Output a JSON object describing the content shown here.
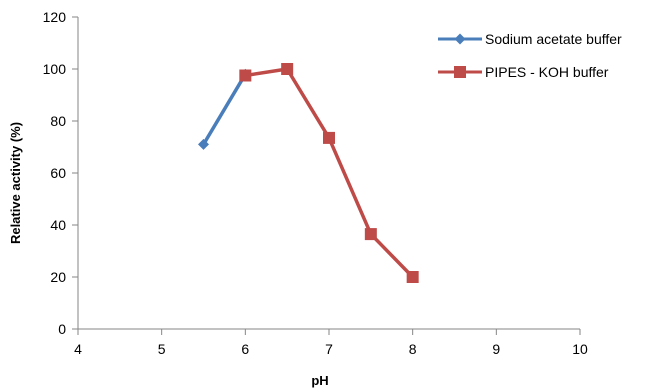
{
  "chart_data": {
    "type": "line",
    "title": "",
    "xlabel": "pH",
    "ylabel": "Relative activity (%)",
    "xlim": [
      4,
      10
    ],
    "ylim": [
      0,
      120
    ],
    "x_ticks": [
      4,
      5,
      6,
      7,
      8,
      9,
      10
    ],
    "y_ticks": [
      0,
      20,
      40,
      60,
      80,
      100,
      120
    ],
    "grid": false,
    "legend_position": "top-right",
    "series": [
      {
        "name": "Sodium acetate buffer",
        "color": "#4a7ebb",
        "marker": "diamond",
        "points": [
          {
            "x": 5.5,
            "y": 71
          },
          {
            "x": 6.0,
            "y": 98
          }
        ]
      },
      {
        "name": "PIPES - KOH buffer",
        "color": "#be4b48",
        "marker": "square",
        "points": [
          {
            "x": 6.0,
            "y": 97.5
          },
          {
            "x": 6.5,
            "y": 100
          },
          {
            "x": 7.0,
            "y": 73.5
          },
          {
            "x": 7.5,
            "y": 36.5
          },
          {
            "x": 8.0,
            "y": 20
          }
        ]
      }
    ]
  }
}
